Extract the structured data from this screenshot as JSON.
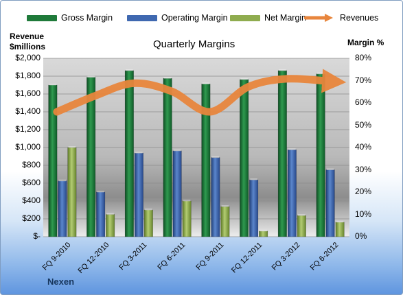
{
  "chart_data": {
    "type": "bar",
    "title": "Quarterly Margins",
    "ylabel": "Revenue\n$millions",
    "y2label": "Margin %",
    "ylim": [
      0,
      2000
    ],
    "y2lim": [
      0,
      80
    ],
    "categories": [
      "FQ 9-2010",
      "FQ 12-2010",
      "FQ 3-2011",
      "FQ 6-2011",
      "FQ 9-2011",
      "FQ 12-2011",
      "FQ 3-2012",
      "FQ 6-2012"
    ],
    "y_ticks": [
      "$-",
      "$200",
      "$400",
      "$600",
      "$800",
      "$1,000",
      "$1,200",
      "$1,400",
      "$1,600",
      "$1,800",
      "$2,000"
    ],
    "y2_ticks": [
      "0%",
      "10%",
      "20%",
      "30%",
      "40%",
      "50%",
      "60%",
      "70%",
      "80%"
    ],
    "series": [
      {
        "name": "Gross Margin",
        "axis": "right",
        "type": "bar",
        "color": "#1f7a3a",
        "values": [
          68,
          71.5,
          74.5,
          71,
          68.5,
          70.5,
          74.5,
          73
        ]
      },
      {
        "name": "Operating Margin",
        "axis": "right",
        "type": "bar",
        "color": "#3f68b0",
        "values": [
          25,
          20,
          37.5,
          38.5,
          35.5,
          25.5,
          39,
          30
        ]
      },
      {
        "name": "Net Margin",
        "axis": "right",
        "type": "bar",
        "color": "#8fac4f",
        "values": [
          40,
          10,
          12,
          16,
          13.5,
          2.5,
          9.5,
          6.5
        ]
      },
      {
        "name": "Revenues",
        "axis": "left",
        "type": "line",
        "color": "#e8863d",
        "values": [
          1400,
          1580,
          1720,
          1630,
          1400,
          1680,
          1770,
          1740
        ]
      }
    ],
    "legend": "top",
    "grid": true
  },
  "footer": {
    "company": "Nexen"
  }
}
